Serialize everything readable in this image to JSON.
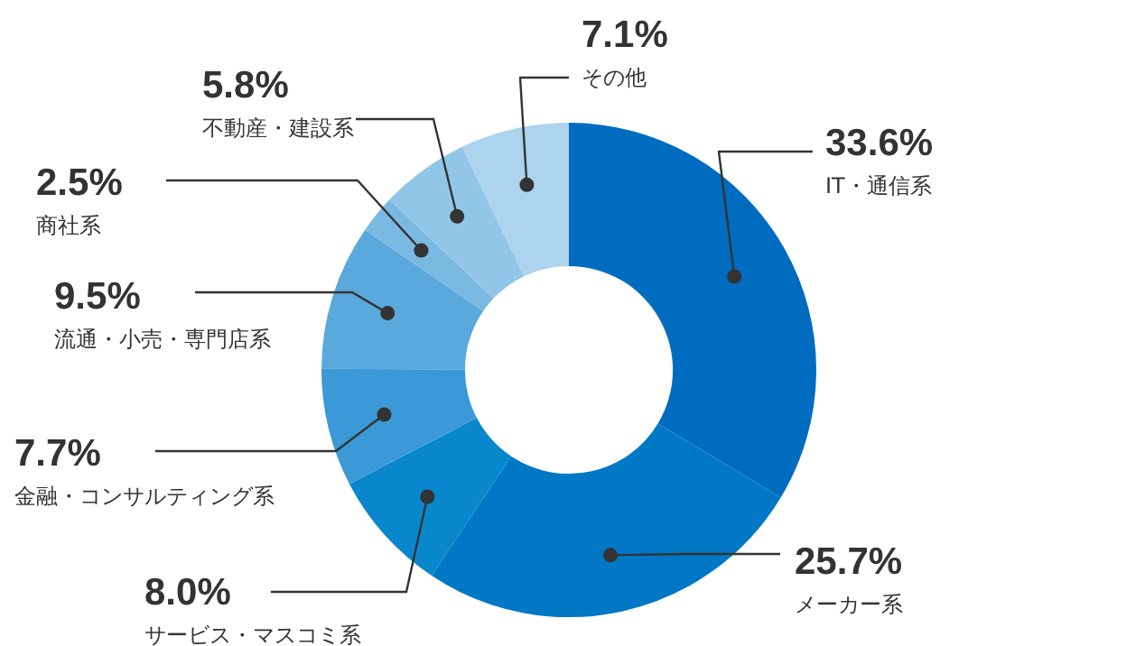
{
  "chart_data": {
    "type": "donut",
    "categories": [
      "IT・通信系",
      "メーカー系",
      "サービス・マスコミ系",
      "金融・コンサルティング系",
      "流通・小売・専門店系",
      "商社系",
      "不動産・建設系",
      "その他"
    ],
    "values": [
      33.6,
      25.7,
      8.0,
      7.7,
      9.5,
      2.5,
      5.8,
      7.1
    ],
    "value_labels": [
      "33.6%",
      "25.7%",
      "8.0%",
      "7.7%",
      "9.5%",
      "2.5%",
      "5.8%",
      "7.1%"
    ],
    "colors": [
      "#006cbf",
      "#0078c6",
      "#0887cc",
      "#3a99d6",
      "#5aa9dc",
      "#7ab9e2",
      "#92c6e9",
      "#acd4ee"
    ],
    "legend": false
  }
}
